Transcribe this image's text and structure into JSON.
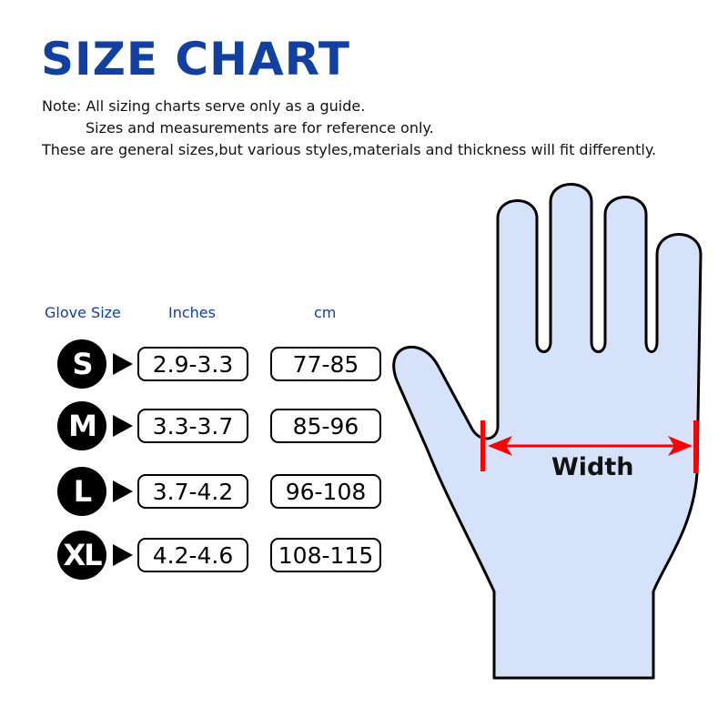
{
  "title": "SIZE CHART",
  "notes": [
    "Note: All sizing charts serve only as a guide.",
    "Sizes and measurements are for reference only.",
    "These are general sizes,but various styles,materials and thickness will fit differently."
  ],
  "headers": {
    "size": "Glove Size",
    "inches": "Inches",
    "cm": "cm"
  },
  "rows": [
    {
      "size": "S",
      "inches": "2.9-3.3",
      "cm": "77-85"
    },
    {
      "size": "M",
      "inches": "3.3-3.7",
      "cm": "85-96"
    },
    {
      "size": "L",
      "inches": "3.7-4.2",
      "cm": "96-108"
    },
    {
      "size": "XL",
      "inches": "4.2-4.6",
      "cm": "108-115"
    }
  ],
  "diagram": {
    "label": "Width"
  },
  "colors": {
    "title": "#1240a0",
    "hand_fill": "#d6e2fa",
    "measure": "#ff0000"
  }
}
